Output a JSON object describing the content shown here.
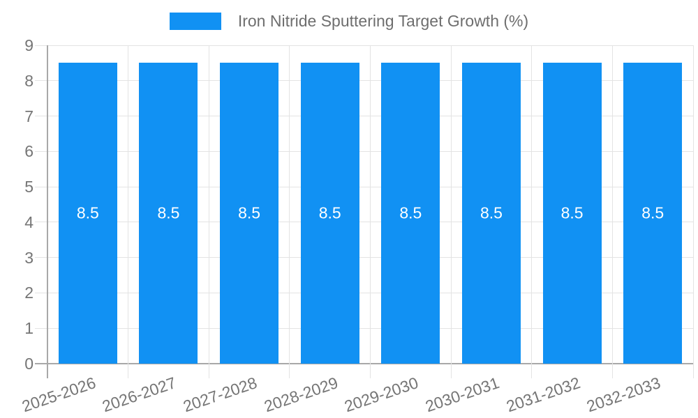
{
  "legend": {
    "label": "Iron Nitride Sputtering Target Growth (%)"
  },
  "colors": {
    "bar": "#1191F3",
    "bar_value_text": "#FFFFFF",
    "tick_text": "#757575",
    "legend_text": "#6E6E6E",
    "axis_line": "#A8A8A8",
    "grid_line": "#E3E3E3",
    "background": "#FFFFFF"
  },
  "chart_data": {
    "type": "bar",
    "title": "",
    "categories": [
      "2025-2026",
      "2026-2027",
      "2027-2028",
      "2028-2029",
      "2029-2030",
      "2030-2031",
      "2031-2032",
      "2032-2033"
    ],
    "series": [
      {
        "name": "Iron Nitride Sputtering Target Growth (%)",
        "values": [
          8.5,
          8.5,
          8.5,
          8.5,
          8.5,
          8.5,
          8.5,
          8.5
        ]
      }
    ],
    "bar_labels": [
      "8.5",
      "8.5",
      "8.5",
      "8.5",
      "8.5",
      "8.5",
      "8.5",
      "8.5"
    ],
    "bar_label_position": "inside-center",
    "xlabel": "",
    "ylabel": "",
    "ylim": [
      0,
      9
    ],
    "yticks": [
      0,
      1,
      2,
      3,
      4,
      5,
      6,
      7,
      8,
      9
    ],
    "grid": true,
    "legend_position": "top-center",
    "x_tick_rotation_deg": -19,
    "bar_color": "#1191F3"
  }
}
